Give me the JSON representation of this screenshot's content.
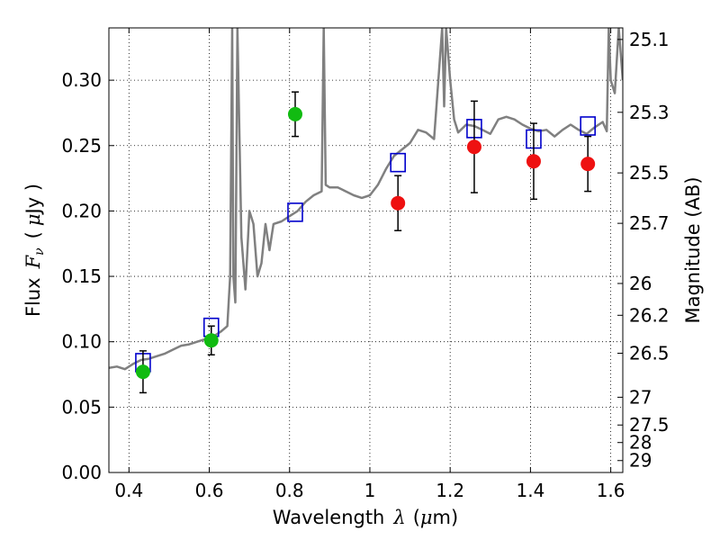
{
  "chart_data": {
    "type": "scatter",
    "title": "",
    "xlabel_parts": [
      "Wavelength",
      "λ",
      "(",
      "μ",
      "m)"
    ],
    "ylabel_parts": [
      "Flux",
      "F",
      "ν",
      "(",
      "μ",
      "Jy )"
    ],
    "y2label": "Magnitude (AB)",
    "xlim": [
      0.35,
      1.63
    ],
    "ylim": [
      0.0,
      0.34
    ],
    "grid": true,
    "x_ticks": [
      0.4,
      0.6,
      0.8,
      1.0,
      1.2,
      1.4,
      1.6
    ],
    "x_tick_labels": [
      "0.4",
      "0.6",
      "0.8",
      "1",
      "1.2",
      "1.4",
      "1.6"
    ],
    "y_ticks": [
      0.0,
      0.05,
      0.1,
      0.15,
      0.2,
      0.25,
      0.3
    ],
    "y_tick_labels": [
      "0.00",
      "0.05",
      "0.10",
      "0.15",
      "0.20",
      "0.25",
      "0.30"
    ],
    "mag_ticks": [
      "25.1",
      "25.3",
      "25.5",
      "25.7",
      "26",
      "26.2",
      "26.5",
      "27",
      "27.5",
      "28",
      "29"
    ],
    "colors": {
      "green_points": "#11bb11",
      "red_points": "#ee1111",
      "model_boxes": "#0000cc",
      "spectrum": "#808080",
      "errorbars": "#000000"
    },
    "series": [
      {
        "kind": "points",
        "x": [
          0.435,
          0.605,
          0.814
        ],
        "y": [
          0.077,
          0.101,
          0.274
        ],
        "yerr": [
          0.016,
          0.011,
          0.017
        ]
      },
      {
        "kind": "points",
        "x": [
          1.07,
          1.26,
          1.408,
          1.543
        ],
        "y": [
          0.206,
          0.249,
          0.238,
          0.236
        ],
        "yerr": [
          0.021,
          0.035,
          0.029,
          0.021
        ]
      },
      {
        "kind": "boxes",
        "x": [
          0.435,
          0.605,
          0.814,
          1.07,
          1.26,
          1.408,
          1.543
        ],
        "y": [
          0.084,
          0.111,
          0.199,
          0.237,
          0.263,
          0.255,
          0.265
        ]
      }
    ],
    "spectrum": {
      "x": [
        0.35,
        0.37,
        0.39,
        0.41,
        0.43,
        0.45,
        0.47,
        0.49,
        0.51,
        0.53,
        0.55,
        0.57,
        0.59,
        0.61,
        0.63,
        0.645,
        0.652,
        0.657,
        0.66,
        0.665,
        0.67,
        0.68,
        0.69,
        0.7,
        0.71,
        0.72,
        0.73,
        0.74,
        0.75,
        0.76,
        0.78,
        0.8,
        0.82,
        0.84,
        0.86,
        0.88,
        0.885,
        0.89,
        0.9,
        0.92,
        0.94,
        0.96,
        0.98,
        1.0,
        1.02,
        1.04,
        1.06,
        1.08,
        1.1,
        1.12,
        1.14,
        1.16,
        1.18,
        1.185,
        1.19,
        1.2,
        1.21,
        1.22,
        1.24,
        1.26,
        1.28,
        1.3,
        1.32,
        1.34,
        1.36,
        1.38,
        1.4,
        1.42,
        1.44,
        1.46,
        1.48,
        1.5,
        1.52,
        1.54,
        1.56,
        1.58,
        1.59,
        1.595,
        1.6,
        1.61,
        1.62,
        1.63
      ],
      "y": [
        0.08,
        0.081,
        0.079,
        0.083,
        0.086,
        0.087,
        0.089,
        0.091,
        0.094,
        0.097,
        0.098,
        0.1,
        0.102,
        0.104,
        0.108,
        0.112,
        0.15,
        0.34,
        0.15,
        0.13,
        0.34,
        0.18,
        0.14,
        0.2,
        0.19,
        0.15,
        0.16,
        0.19,
        0.17,
        0.19,
        0.192,
        0.196,
        0.2,
        0.207,
        0.212,
        0.215,
        0.34,
        0.22,
        0.218,
        0.218,
        0.215,
        0.212,
        0.21,
        0.212,
        0.22,
        0.232,
        0.242,
        0.247,
        0.252,
        0.262,
        0.26,
        0.255,
        0.34,
        0.28,
        0.34,
        0.3,
        0.27,
        0.26,
        0.266,
        0.265,
        0.262,
        0.259,
        0.27,
        0.272,
        0.27,
        0.266,
        0.263,
        0.261,
        0.262,
        0.257,
        0.262,
        0.266,
        0.262,
        0.259,
        0.264,
        0.268,
        0.261,
        0.34,
        0.3,
        0.29,
        0.34,
        0.3
      ]
    }
  }
}
